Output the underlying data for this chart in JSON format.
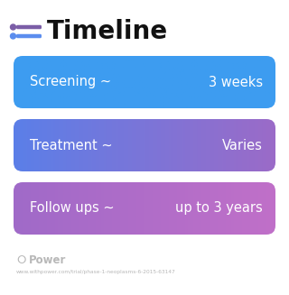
{
  "title": "Timeline",
  "background_color": "#ffffff",
  "title_color": "#111111",
  "title_fontsize": 20,
  "title_fontweight": "bold",
  "icon_color1": "#7b5ea7",
  "icon_color2": "#5b8dee",
  "bars": [
    {
      "label": "Screening ~",
      "value": "3 weeks",
      "color_left": "#3d9cf0",
      "color_right": "#3d9cf0"
    },
    {
      "label": "Treatment ~",
      "value": "Varies",
      "color_left": "#5b7fe8",
      "color_right": "#9b6bc8"
    },
    {
      "label": "Follow ups ~",
      "value": "up to 3 years",
      "color_left": "#a06ac8",
      "color_right": "#c070c8"
    }
  ],
  "bar_text_color": "#ffffff",
  "bar_fontsize": 10.5,
  "watermark_text": "Power",
  "watermark_color": "#b8b8b8",
  "url_text": "www.withpower.com/trial/phase-1-neoplasms-6-2015-63147",
  "url_color": "#b8b8b8",
  "url_fontsize": 4.2,
  "watermark_fontsize": 8.5
}
